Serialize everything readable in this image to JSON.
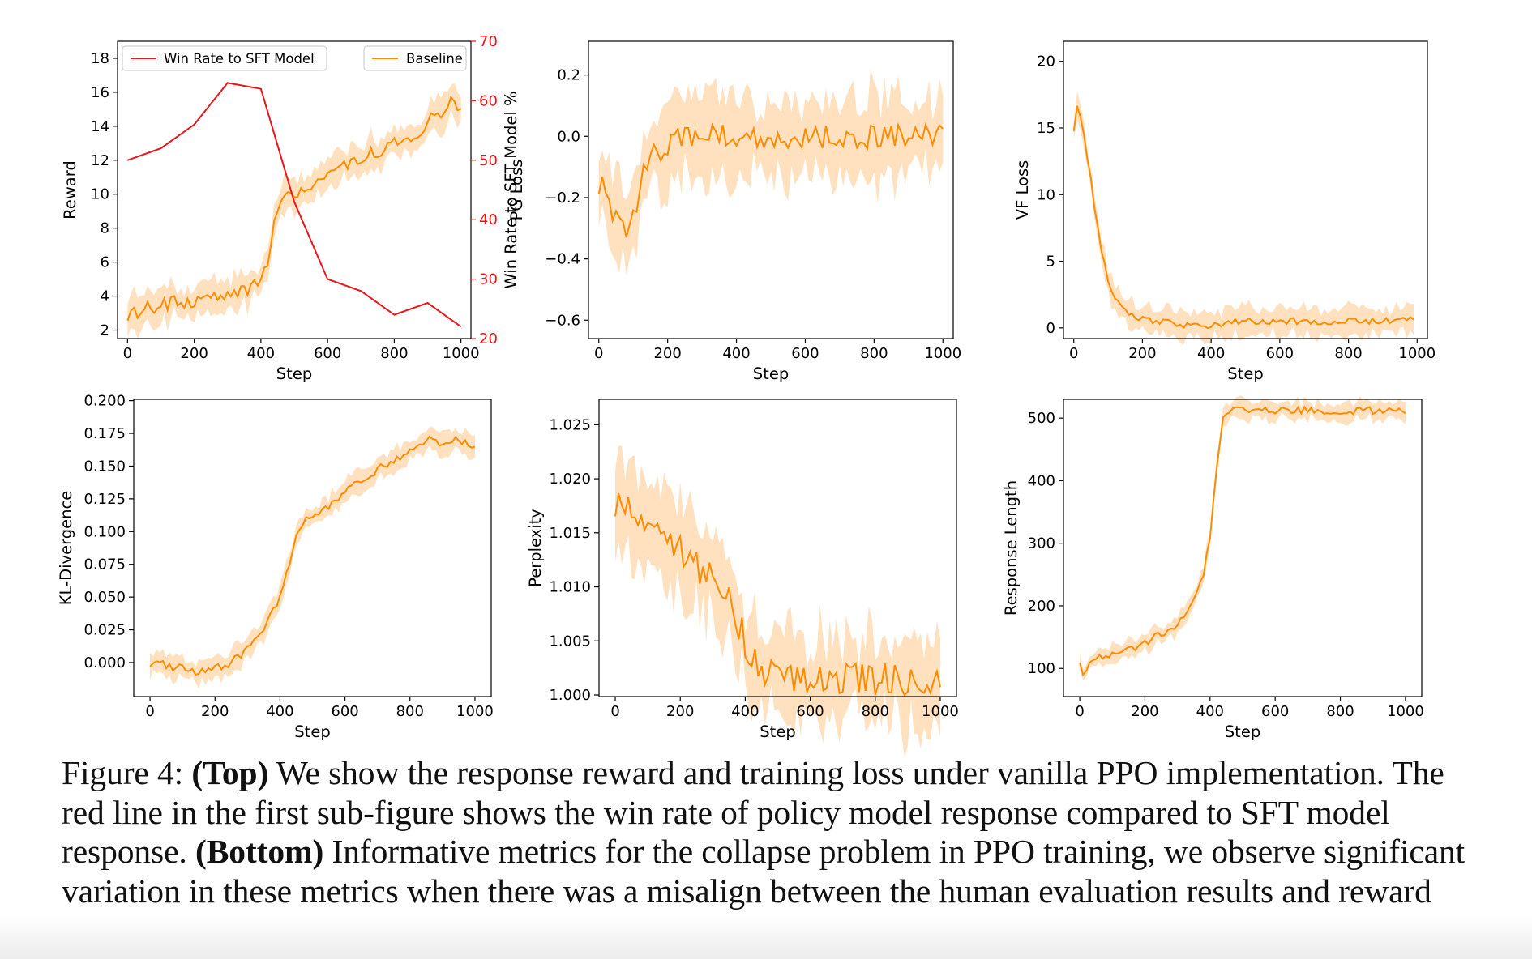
{
  "caption": {
    "label": "Figure 4:",
    "top_bold": "(Top)",
    "part1": " We show the response reward and training loss under vanilla PPO implementation. The red line in the first sub-figure shows the win rate of policy model response compared to SFT model response. ",
    "bottom_bold": "(Bottom)",
    "part2": " Informative metrics for the collapse problem in PPO training, we observe significant variation in these metrics when there was a misalign between the human evaluation results and reward scores."
  },
  "colors": {
    "baseline": "#ff8c00",
    "band": "#ffdcb4",
    "winrate": "#e8161b",
    "axis": "#000000"
  },
  "chart_data": [
    {
      "id": "reward",
      "type": "line",
      "xlabel": "Step",
      "ylabel": "Reward",
      "y2label": "Win Rate to SFT Model %",
      "xlim": [
        -30,
        1030
      ],
      "ylim": [
        1.5,
        19
      ],
      "y2lim": [
        20,
        70
      ],
      "xticks": [
        0,
        200,
        400,
        600,
        800,
        1000
      ],
      "yticks": [
        2,
        4,
        6,
        8,
        10,
        12,
        14,
        16,
        18
      ],
      "y2ticks": [
        20,
        30,
        40,
        50,
        60,
        70
      ],
      "legend": [
        {
          "name": "Win Rate to SFT Model",
          "placement": "upper-left"
        },
        {
          "name": "Baseline",
          "placement": "upper-right"
        }
      ],
      "series": [
        {
          "name": "Baseline",
          "axis": "left",
          "band": 0.9,
          "noise": 0.45,
          "x": [
            0,
            50,
            100,
            150,
            200,
            250,
            300,
            350,
            380,
            400,
            420,
            440,
            460,
            480,
            500,
            550,
            600,
            650,
            700,
            750,
            800,
            850,
            900,
            950,
            980,
            1000
          ],
          "y": [
            3.0,
            3.2,
            3.4,
            3.6,
            3.8,
            3.9,
            4.1,
            4.4,
            4.5,
            4.7,
            6.0,
            8.5,
            10.0,
            10.5,
            10.0,
            10.4,
            10.8,
            11.5,
            12.2,
            12.6,
            13.0,
            13.4,
            14.2,
            15.0,
            15.6,
            14.6
          ]
        },
        {
          "name": "Win Rate to SFT Model",
          "axis": "right",
          "band": 0,
          "noise": 0,
          "x": [
            0,
            100,
            200,
            300,
            400,
            500,
            600,
            700,
            800,
            900,
            1000
          ],
          "y": [
            50,
            52,
            56,
            63,
            62,
            43,
            30,
            28,
            24,
            26,
            22
          ]
        }
      ]
    },
    {
      "id": "pg-loss",
      "type": "line",
      "xlabel": "Step",
      "ylabel": "PG Loss",
      "xlim": [
        -30,
        1030
      ],
      "ylim": [
        -0.66,
        0.31
      ],
      "xticks": [
        0,
        200,
        400,
        600,
        800,
        1000
      ],
      "yticks": [
        -0.6,
        -0.4,
        -0.2,
        0.0,
        0.2
      ],
      "series": [
        {
          "name": "Baseline",
          "axis": "left",
          "band": 0.13,
          "noise": 0.04,
          "x": [
            0,
            20,
            40,
            60,
            80,
            100,
            120,
            150,
            200,
            250,
            300,
            400,
            500,
            600,
            700,
            800,
            900,
            1000
          ],
          "y": [
            -0.15,
            -0.18,
            -0.25,
            -0.27,
            -0.31,
            -0.28,
            -0.15,
            -0.07,
            -0.02,
            0.0,
            0.0,
            0.0,
            0.0,
            0.0,
            0.0,
            0.0,
            0.0,
            0.0
          ]
        }
      ]
    },
    {
      "id": "vf-loss",
      "type": "line",
      "xlabel": "Step",
      "ylabel": "VF Loss",
      "xlim": [
        -30,
        1030
      ],
      "ylim": [
        -0.8,
        21.5
      ],
      "xticks": [
        0,
        200,
        400,
        600,
        800,
        1000
      ],
      "yticks": [
        0,
        5,
        10,
        15,
        20
      ],
      "series": [
        {
          "name": "Baseline",
          "axis": "left",
          "band": 1.0,
          "noise": 0.25,
          "x": [
            0,
            10,
            25,
            50,
            75,
            100,
            125,
            150,
            175,
            200,
            250,
            300,
            350,
            400,
            420,
            450,
            500,
            600,
            700,
            800,
            900,
            990
          ],
          "y": [
            15.0,
            16.8,
            15.5,
            11.0,
            6.5,
            3.5,
            2.0,
            1.2,
            0.8,
            0.6,
            0.45,
            0.3,
            0.15,
            0.1,
            0.2,
            0.55,
            0.5,
            0.5,
            0.5,
            0.5,
            0.55,
            0.6
          ]
        }
      ]
    },
    {
      "id": "kl-divergence",
      "type": "line",
      "xlabel": "Step",
      "ylabel": "KL-Divergence",
      "xlim": [
        -50,
        1050
      ],
      "ylim": [
        -0.026,
        0.201
      ],
      "xticks": [
        0,
        200,
        400,
        600,
        800,
        1000
      ],
      "yticks": [
        0.0,
        0.025,
        0.05,
        0.075,
        0.1,
        0.125,
        0.15,
        0.175,
        0.2
      ],
      "ytick_labels": [
        "0.000",
        "0.025",
        "0.050",
        "0.075",
        "0.100",
        "0.125",
        "0.150",
        "0.175",
        "0.200"
      ],
      "series": [
        {
          "name": "Baseline",
          "axis": "left",
          "band": 0.008,
          "noise": 0.003,
          "x": [
            0,
            50,
            100,
            150,
            200,
            250,
            300,
            350,
            400,
            430,
            450,
            470,
            500,
            550,
            600,
            650,
            700,
            750,
            800,
            850,
            900,
            950,
            1000
          ],
          "y": [
            0.0,
            -0.002,
            -0.005,
            -0.007,
            -0.005,
            0.0,
            0.01,
            0.025,
            0.05,
            0.075,
            0.1,
            0.107,
            0.11,
            0.118,
            0.13,
            0.14,
            0.147,
            0.155,
            0.16,
            0.17,
            0.168,
            0.17,
            0.165
          ]
        }
      ]
    },
    {
      "id": "perplexity",
      "type": "line",
      "xlabel": "Step",
      "ylabel": "Perplexity",
      "xlim": [
        -50,
        1050
      ],
      "ylim": [
        0.99985,
        1.02735
      ],
      "xticks": [
        0,
        200,
        400,
        600,
        800,
        1000
      ],
      "yticks": [
        1.0,
        1.005,
        1.01,
        1.015,
        1.02,
        1.025
      ],
      "ytick_labels": [
        "1.000",
        "1.005",
        "1.010",
        "1.015",
        "1.020",
        "1.025"
      ],
      "series": [
        {
          "name": "Baseline",
          "axis": "left",
          "band": 0.004,
          "noise": 0.0015,
          "x": [
            0,
            50,
            100,
            150,
            200,
            250,
            300,
            350,
            400,
            440,
            460,
            500,
            600,
            700,
            800,
            900,
            1000
          ],
          "y": [
            1.018,
            1.017,
            1.016,
            1.015,
            1.0135,
            1.012,
            1.0105,
            1.0085,
            1.005,
            1.0025,
            1.0018,
            1.0018,
            1.0017,
            1.0016,
            1.0015,
            1.0014,
            1.0013
          ]
        }
      ]
    },
    {
      "id": "response-length",
      "type": "line",
      "xlabel": "Step",
      "ylabel": "Response Length",
      "xlim": [
        -50,
        1050
      ],
      "ylim": [
        55,
        530
      ],
      "xticks": [
        0,
        200,
        400,
        600,
        800,
        1000
      ],
      "yticks": [
        100,
        200,
        300,
        400,
        500
      ],
      "series": [
        {
          "name": "Baseline",
          "axis": "left",
          "band": 14,
          "noise": 6,
          "x": [
            0,
            10,
            50,
            100,
            150,
            200,
            250,
            300,
            350,
            380,
            400,
            420,
            440,
            460,
            500,
            600,
            700,
            800,
            900,
            1000
          ],
          "y": [
            115,
            95,
            115,
            120,
            130,
            140,
            155,
            170,
            210,
            250,
            310,
            420,
            505,
            512,
            512,
            512,
            512,
            512,
            512,
            512
          ]
        }
      ]
    }
  ]
}
